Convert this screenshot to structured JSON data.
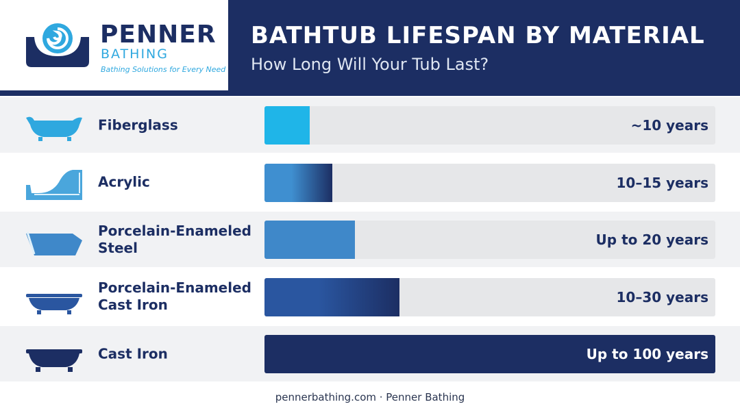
{
  "brand": {
    "name": "PENNER",
    "sub": "BATHING",
    "tagline": "Bathing Solutions for Every Need"
  },
  "chart_data": {
    "type": "bar",
    "orientation": "horizontal",
    "title": "BATHTUB LIFESPAN BY MATERIAL",
    "subtitle": "How Long Will Your Tub Last?",
    "categories": [
      "Fiberglass",
      "Acrylic",
      "Porcelain-Enameled Steel",
      "Porcelain-Enameled Cast Iron",
      "Cast Iron"
    ],
    "values": [
      10,
      15,
      20,
      30,
      100
    ],
    "value_labels": [
      "~10 years",
      "10–15 years",
      "Up to 20 years",
      "10–30 years",
      "Up to 100 years"
    ],
    "colors": [
      "#1fb5e8",
      "#3f8fd0",
      "#3f88c9",
      "#2a56a0",
      "#1c2e63"
    ],
    "xlim": [
      0,
      100
    ]
  },
  "footer": "pennerbathing.com · Penner Bathing"
}
